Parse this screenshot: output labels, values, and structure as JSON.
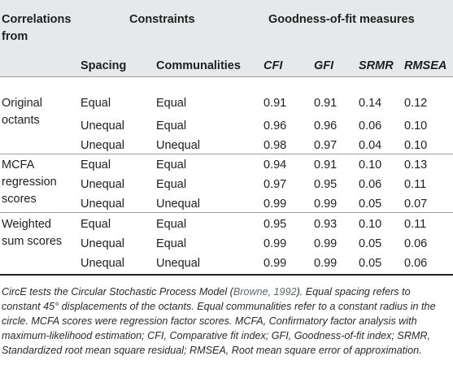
{
  "header": {
    "col1_line1": "Correlations",
    "col1_line2": "from",
    "constraints": "Constraints",
    "gof": "Goodness-of-fit measures",
    "spacing": "Spacing",
    "communalities": "Communalities",
    "cfi": "CFI",
    "gfi": "GFI",
    "srmr": "SRMR",
    "rmsea": "RMSEA"
  },
  "groups": [
    {
      "label_lines": [
        "Original",
        "octants"
      ]
    },
    {
      "label_lines": [
        "MCFA",
        "regression",
        "scores"
      ]
    },
    {
      "label_lines": [
        "Weighted",
        "sum scores"
      ]
    }
  ],
  "rows": [
    {
      "spacing": "Equal",
      "comm": "Equal",
      "cfi": "0.91",
      "gfi": "0.91",
      "srmr": "0.14",
      "rmsea": "0.12"
    },
    {
      "spacing": "Unequal",
      "comm": "Equal",
      "cfi": "0.96",
      "gfi": "0.96",
      "srmr": "0.06",
      "rmsea": "0.10"
    },
    {
      "spacing": "Unequal",
      "comm": "Unequal",
      "cfi": "0.98",
      "gfi": "0.97",
      "srmr": "0.04",
      "rmsea": "0.10"
    },
    {
      "spacing": "Equal",
      "comm": "Equal",
      "cfi": "0.94",
      "gfi": "0.91",
      "srmr": "0.10",
      "rmsea": "0.13"
    },
    {
      "spacing": "Unequal",
      "comm": "Equal",
      "cfi": "0.97",
      "gfi": "0.95",
      "srmr": "0.06",
      "rmsea": "0.11"
    },
    {
      "spacing": "Unequal",
      "comm": "Unequal",
      "cfi": "0.99",
      "gfi": "0.99",
      "srmr": "0.05",
      "rmsea": "0.07"
    },
    {
      "spacing": "Equal",
      "comm": "Equal",
      "cfi": "0.95",
      "gfi": "0.93",
      "srmr": "0.10",
      "rmsea": "0.11"
    },
    {
      "spacing": "Unequal",
      "comm": "Equal",
      "cfi": "0.99",
      "gfi": "0.99",
      "srmr": "0.05",
      "rmsea": "0.06"
    },
    {
      "spacing": "Unequal",
      "comm": "Unequal",
      "cfi": "0.99",
      "gfi": "0.99",
      "srmr": "0.05",
      "rmsea": "0.06"
    }
  ],
  "note": {
    "part1": "CircE tests the Circular Stochastic Process Model (",
    "citation": "Browne, 1992",
    "part2": "). Equal spacing refers to constant 45° displacements of the octants. Equal communalities refer to a constant radius in the circle. MCFA scores were regression factor scores. MCFA, Confirmatory factor analysis with maximum-likelihood estimation; CFI, Comparative fit index; GFI, Goodness-of-fit index; SRMR, Standardized root mean square residual; RMSEA, Root mean square error of approximation."
  }
}
